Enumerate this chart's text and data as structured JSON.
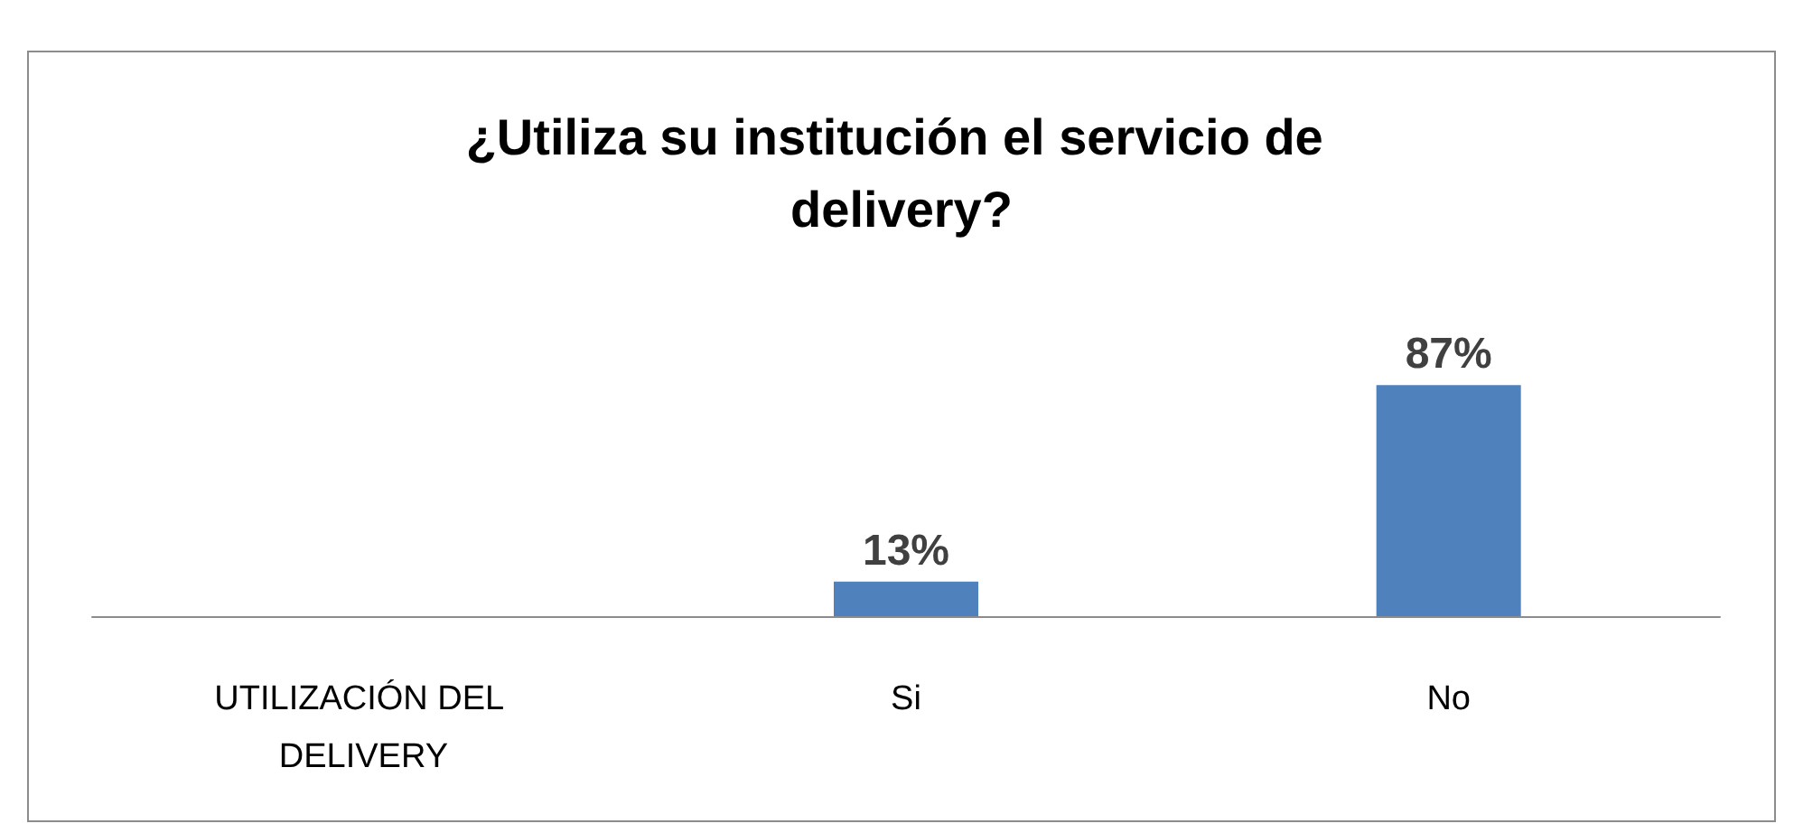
{
  "chart_data": {
    "type": "bar",
    "title": "¿Utiliza su institución el servicio de delivery?",
    "categories": [
      "UTILIZACIÓN DEL DELIVERY",
      "Si",
      "No"
    ],
    "values": [
      null,
      13,
      87
    ],
    "value_labels": [
      null,
      "13%",
      "87%"
    ],
    "color": "#4f81bd"
  }
}
